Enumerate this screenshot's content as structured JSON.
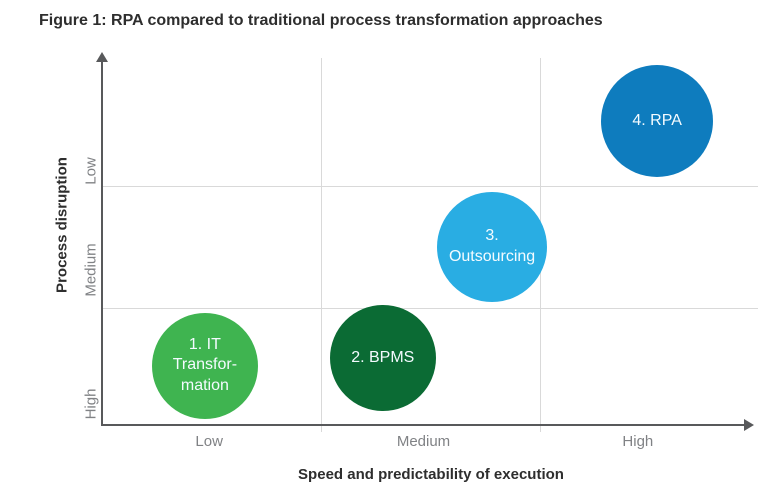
{
  "chart_data": {
    "type": "scatter",
    "mark": "bubble",
    "title": "Figure 1: RPA compared to traditional process transformation approaches",
    "xlabel": "Speed and predictability of execution",
    "ylabel": "Process disruption",
    "x_tick_labels": [
      "Low",
      "Medium",
      "High"
    ],
    "y_tick_labels_top_to_bottom": [
      "Low",
      "Medium",
      "High"
    ],
    "x_range": [
      0,
      3
    ],
    "y_range": [
      0,
      3
    ],
    "grid": true,
    "legend": "none",
    "axis_notes": "x axis: speed low-to-high with right arrow; y axis: disruption plotted with High at bottom and Low at top, up arrow",
    "colors": {
      "axis": "#58595B",
      "gridline": "#D9D9D9",
      "tick_text": "#808285",
      "heading_text": "#2E2E2E",
      "bubble_text": "#FFFFFF"
    },
    "points": [
      {
        "order": 1,
        "name": "IT Transformation",
        "label": "1. IT\nTransfor-\nmation",
        "speed": "Low",
        "process_disruption": "High",
        "x": 0.48,
        "y": 0.49,
        "r": 53,
        "color": "#3FB450"
      },
      {
        "order": 2,
        "name": "BPMS",
        "label": "2. BPMS",
        "speed": "Medium",
        "process_disruption": "High",
        "x": 1.31,
        "y": 0.55,
        "r": 53,
        "color": "#0B6B34"
      },
      {
        "order": 3,
        "name": "Outsourcing",
        "label": "3.\nOutsourcing",
        "speed": "Medium",
        "process_disruption": "Medium",
        "x": 1.82,
        "y": 1.47,
        "r": 55,
        "color": "#29ADE3"
      },
      {
        "order": 4,
        "name": "RPA",
        "label": "4. RPA",
        "speed": "High",
        "process_disruption": "Low",
        "x": 2.59,
        "y": 2.51,
        "r": 56,
        "color": "#0E7CBE"
      }
    ]
  }
}
